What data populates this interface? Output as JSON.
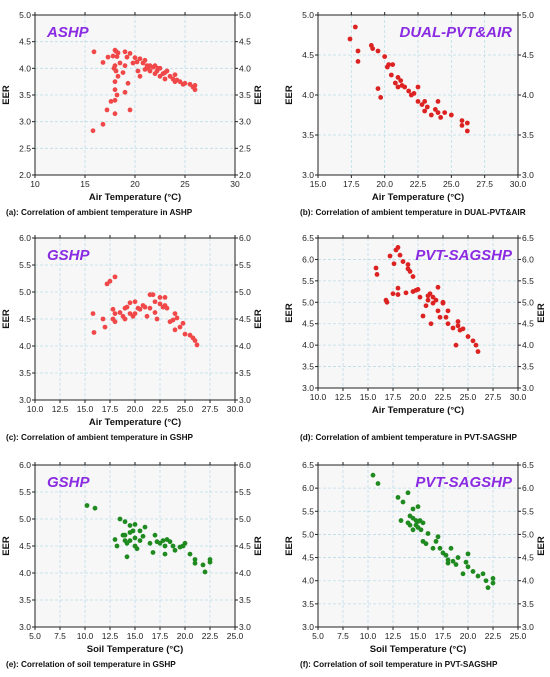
{
  "figure": {
    "background": "#ffffff",
    "plot_background": "#f7f7f7",
    "grid_color": "#bcdde8",
    "frame_color": "#222222"
  },
  "chart_data": [
    {
      "type": "scatter",
      "title": "ASHP",
      "title_color": "#8a2be2",
      "xlabel": "Air Temperature (°C)",
      "ylabel": "EER",
      "ylabel_right": "EER",
      "caption": "(a): Correlation of ambient temperature in ASHP",
      "xlim": [
        10,
        30
      ],
      "ylim": [
        2.0,
        5.0
      ],
      "xticks": [
        10,
        15,
        20,
        25,
        30
      ],
      "xtick_labels": [
        "10",
        "15",
        "20",
        "25",
        "30"
      ],
      "yticks": [
        2.0,
        2.5,
        3.0,
        3.5,
        4.0,
        4.5,
        5.0
      ],
      "ytick_labels": [
        "2.0",
        "2.5",
        "3.0",
        "3.5",
        "4.0",
        "4.5",
        "5.0"
      ],
      "grid": true,
      "marker_color": "#f04848",
      "series": [
        {
          "x": [
            15.8,
            15.9,
            16.8,
            16.8,
            17.2,
            17.3,
            17.6,
            17.8,
            17.9,
            18.0,
            18.0,
            18.0,
            18.0,
            18.0,
            18.0,
            18.1,
            18.1,
            18.2,
            18.2,
            18.3,
            18.3,
            18.5,
            18.8,
            19.0,
            19.0,
            19.0,
            19.2,
            19.3,
            19.5,
            19.5,
            19.8,
            20.0,
            20.2,
            20.3,
            20.5,
            20.5,
            20.8,
            21.0,
            21.0,
            21.2,
            21.3,
            21.5,
            21.5,
            21.8,
            22.0,
            22.0,
            22.2,
            22.3,
            22.5,
            22.5,
            22.8,
            23.0,
            23.0,
            23.2,
            23.5,
            23.8,
            24.0,
            24.0,
            24.2,
            24.5,
            24.8,
            25.0,
            25.5,
            25.8,
            26.0,
            26.0
          ],
          "y": [
            2.83,
            4.31,
            4.11,
            2.95,
            3.22,
            4.21,
            3.38,
            4.23,
            4.0,
            4.34,
            4.05,
            3.75,
            3.6,
            3.4,
            3.15,
            4.32,
            3.95,
            4.22,
            3.5,
            4.29,
            3.85,
            4.1,
            3.92,
            4.31,
            4.05,
            3.55,
            4.21,
            3.72,
            4.28,
            3.22,
            4.1,
            4.2,
            4.12,
            3.95,
            4.18,
            3.85,
            4.1,
            4.15,
            3.98,
            4.05,
            4.0,
            4.05,
            3.95,
            4.02,
            4.05,
            3.9,
            3.95,
            4.0,
            4.0,
            3.85,
            3.9,
            3.92,
            3.8,
            3.95,
            3.85,
            3.8,
            3.88,
            3.75,
            3.78,
            3.75,
            3.7,
            3.72,
            3.7,
            3.65,
            3.68,
            3.6
          ]
        }
      ]
    },
    {
      "type": "scatter",
      "title": "DUAL-PVT&AIR",
      "title_color": "#8a2be2",
      "xlabel": "Air Temperature (°C)",
      "ylabel": "EER",
      "ylabel_right": "",
      "caption": "(b): Correlation of ambient temperature in DUAL-PVT&AIR",
      "xlim": [
        15,
        30
      ],
      "ylim": [
        3.0,
        5.0
      ],
      "xticks": [
        15,
        17.5,
        20,
        22.5,
        25,
        27.5,
        30
      ],
      "xtick_labels": [
        "15.0",
        "17.5",
        "20.0",
        "22.5",
        "25.0",
        "27.5",
        "30.0"
      ],
      "yticks": [
        3.0,
        3.5,
        4.0,
        4.5,
        5.0
      ],
      "ytick_labels": [
        "3.0",
        "3.5",
        "4.0",
        "4.5",
        "5.0"
      ],
      "grid": true,
      "marker_color": "#dd2222",
      "series": [
        {
          "x": [
            17.4,
            17.8,
            18.0,
            18.0,
            19.0,
            19.1,
            19.5,
            19.5,
            19.7,
            20.0,
            20.2,
            20.3,
            20.5,
            20.6,
            20.8,
            21.0,
            21.0,
            21.2,
            21.3,
            21.5,
            21.8,
            22.0,
            22.2,
            22.5,
            22.5,
            22.8,
            23.0,
            23.0,
            23.2,
            23.5,
            23.8,
            24.0,
            24.0,
            24.2,
            24.5,
            25.0,
            25.8,
            25.8,
            26.2,
            26.2
          ],
          "y": [
            4.7,
            4.85,
            4.55,
            4.42,
            4.62,
            4.58,
            4.55,
            4.08,
            3.97,
            4.48,
            4.35,
            4.38,
            4.25,
            4.38,
            4.15,
            4.22,
            4.1,
            4.18,
            4.12,
            4.1,
            4.05,
            4.0,
            4.02,
            3.92,
            4.1,
            3.88,
            3.92,
            3.8,
            3.85,
            3.75,
            3.82,
            3.78,
            3.92,
            3.72,
            3.78,
            3.75,
            3.68,
            3.62,
            3.65,
            3.55
          ]
        }
      ]
    },
    {
      "type": "scatter",
      "title": "GSHP",
      "title_color": "#8a2be2",
      "xlabel": "Air Temperature (°C)",
      "ylabel": "EER",
      "ylabel_right": "EER",
      "caption": "(c): Correlation of ambient temperature in GSHP",
      "xlim": [
        10,
        30
      ],
      "ylim": [
        3.0,
        6.0
      ],
      "xticks": [
        10,
        12.5,
        15,
        17.5,
        20,
        22.5,
        25,
        27.5,
        30
      ],
      "xtick_labels": [
        "10.0",
        "12.5",
        "15.0",
        "17.5",
        "20.0",
        "22.5",
        "25.0",
        "27.5",
        "30.0"
      ],
      "yticks": [
        3.0,
        3.5,
        4.0,
        4.5,
        5.0,
        5.5,
        6.0
      ],
      "ytick_labels": [
        "3.0",
        "3.5",
        "4.0",
        "4.5",
        "5.0",
        "5.5",
        "6.0"
      ],
      "grid": true,
      "marker_color": "#f04848",
      "series": [
        {
          "x": [
            15.8,
            15.9,
            16.8,
            17.0,
            17.2,
            17.5,
            17.8,
            17.8,
            18.0,
            18.0,
            18.0,
            18.5,
            18.8,
            19.0,
            19.0,
            19.2,
            19.5,
            19.5,
            19.8,
            20.0,
            20.0,
            20.3,
            20.5,
            20.8,
            21.0,
            21.2,
            21.5,
            21.5,
            21.8,
            22.0,
            22.0,
            22.2,
            22.5,
            22.5,
            22.8,
            23.0,
            23.0,
            23.2,
            23.5,
            23.8,
            24.0,
            24.0,
            24.2,
            24.5,
            24.8,
            25.0,
            25.5,
            25.8,
            26.0,
            26.2
          ],
          "y": [
            4.6,
            4.25,
            4.5,
            4.35,
            5.15,
            5.2,
            4.68,
            4.5,
            5.28,
            4.6,
            4.45,
            4.62,
            4.55,
            4.7,
            4.5,
            4.72,
            4.8,
            4.6,
            4.55,
            4.82,
            4.6,
            4.7,
            4.68,
            4.75,
            4.72,
            4.55,
            4.95,
            4.7,
            4.95,
            4.62,
            4.82,
            4.5,
            4.9,
            4.78,
            4.72,
            4.9,
            4.75,
            4.7,
            4.45,
            4.48,
            4.6,
            4.3,
            4.52,
            4.35,
            4.42,
            4.22,
            4.2,
            4.15,
            4.1,
            4.02
          ]
        }
      ]
    },
    {
      "type": "scatter",
      "title": "PVT-SAGSHP",
      "title_color": "#8a2be2",
      "xlabel": "Air Temperature (°C)",
      "ylabel": "EER",
      "ylabel_right": "EER",
      "caption": "(d): Correlation of ambient temperature in PVT-SAGSHP",
      "xlim": [
        10,
        30
      ],
      "ylim": [
        3.0,
        6.5
      ],
      "xticks": [
        10,
        12.5,
        15,
        17.5,
        20,
        22.5,
        25,
        27.5,
        30
      ],
      "xtick_labels": [
        "10.0",
        "12.5",
        "15.0",
        "17.5",
        "20.0",
        "22.5",
        "25.0",
        "27.5",
        "30.0"
      ],
      "yticks": [
        3.0,
        3.5,
        4.0,
        4.5,
        5.0,
        5.5,
        6.0,
        6.5
      ],
      "ytick_labels": [
        "3.0",
        "3.5",
        "4.0",
        "4.5",
        "5.0",
        "5.5",
        "6.0",
        "6.5"
      ],
      "grid": true,
      "marker_color": "#dd2222",
      "series": [
        {
          "x": [
            15.8,
            15.9,
            16.8,
            16.9,
            17.2,
            17.5,
            17.6,
            17.8,
            18.0,
            18.0,
            18.0,
            18.2,
            18.5,
            18.8,
            19.0,
            19.0,
            19.2,
            19.5,
            19.5,
            19.8,
            20.0,
            20.2,
            20.5,
            20.8,
            21.0,
            21.0,
            21.2,
            21.3,
            21.5,
            21.5,
            21.8,
            22.0,
            22.0,
            22.2,
            22.5,
            22.5,
            22.8,
            23.0,
            23.0,
            23.5,
            23.8,
            24.0,
            24.0,
            24.2,
            24.5,
            25.0,
            25.5,
            25.8,
            26.0
          ],
          "y": [
            5.8,
            5.65,
            5.05,
            5.0,
            6.08,
            5.2,
            5.9,
            6.22,
            6.28,
            5.33,
            5.18,
            6.1,
            5.95,
            5.22,
            5.88,
            5.78,
            5.72,
            5.6,
            5.25,
            5.28,
            5.3,
            5.12,
            4.68,
            4.92,
            5.15,
            5.05,
            5.2,
            4.5,
            5.12,
            4.98,
            5.05,
            4.8,
            5.35,
            4.65,
            4.98,
            5.0,
            4.65,
            4.8,
            4.5,
            4.4,
            4.0,
            4.55,
            4.45,
            4.35,
            4.38,
            4.2,
            4.1,
            4.0,
            3.85
          ]
        }
      ]
    },
    {
      "type": "scatter",
      "title": "GSHP",
      "title_color": "#8a2be2",
      "xlabel": "Soil Temperature (°C)",
      "ylabel": "EER",
      "ylabel_right": "EER",
      "caption": "(e): Correlation of soil temperature in GSHP",
      "xlim": [
        5,
        25
      ],
      "ylim": [
        3.0,
        6.0
      ],
      "xticks": [
        5,
        7.5,
        10,
        12.5,
        15,
        17.5,
        20,
        22.5,
        25
      ],
      "xtick_labels": [
        "5.0",
        "7.5",
        "10.0",
        "12.5",
        "15.0",
        "17.5",
        "20.0",
        "22.5",
        "25.0"
      ],
      "yticks": [
        3.0,
        3.5,
        4.0,
        4.5,
        5.0,
        5.5,
        6.0
      ],
      "ytick_labels": [
        "3.0",
        "3.5",
        "4.0",
        "4.5",
        "5.0",
        "5.5",
        "6.0"
      ],
      "grid": true,
      "marker_color": "#1f8a1f",
      "series": [
        {
          "x": [
            10.2,
            11.0,
            13.0,
            13.2,
            13.5,
            13.8,
            14.0,
            14.0,
            14.0,
            14.2,
            14.2,
            14.5,
            14.5,
            14.5,
            14.8,
            15.0,
            15.0,
            15.0,
            15.2,
            15.5,
            15.5,
            15.8,
            16.0,
            16.5,
            16.8,
            17.0,
            17.2,
            17.5,
            17.8,
            18.0,
            18.0,
            18.2,
            18.5,
            18.8,
            19.0,
            19.5,
            19.8,
            20.0,
            20.5,
            21.0,
            21.0,
            21.8,
            22.0,
            22.5,
            22.5
          ],
          "y": [
            5.25,
            5.2,
            4.62,
            4.5,
            5.0,
            4.7,
            4.95,
            4.7,
            4.6,
            4.55,
            4.3,
            4.88,
            4.75,
            4.6,
            4.78,
            4.9,
            4.65,
            4.5,
            4.45,
            4.78,
            4.6,
            4.68,
            4.85,
            4.55,
            4.38,
            4.7,
            4.58,
            4.55,
            4.6,
            4.5,
            4.35,
            4.62,
            4.58,
            4.5,
            4.42,
            4.48,
            4.5,
            4.55,
            4.35,
            4.25,
            4.18,
            4.15,
            4.02,
            4.2,
            4.25
          ]
        }
      ]
    },
    {
      "type": "scatter",
      "title": "PVT-SAGSHP",
      "title_color": "#8a2be2",
      "xlabel": "Soil Temperature (°C)",
      "ylabel": "EER",
      "ylabel_right": "EER",
      "caption": "(f): Correlation of soil temperature in PVT-SAGSHP",
      "xlim": [
        5,
        25
      ],
      "ylim": [
        3.0,
        6.5
      ],
      "xticks": [
        5,
        7.5,
        10,
        12.5,
        15,
        17.5,
        20,
        22.5,
        25
      ],
      "xtick_labels": [
        "5.0",
        "7.5",
        "10.0",
        "12.5",
        "15.0",
        "17.5",
        "20.0",
        "22.5",
        "25.0"
      ],
      "yticks": [
        3.0,
        3.5,
        4.0,
        4.5,
        5.0,
        5.5,
        6.0,
        6.5
      ],
      "ytick_labels": [
        "3.0",
        "3.5",
        "4.0",
        "4.5",
        "5.0",
        "5.5",
        "6.0",
        "6.5"
      ],
      "grid": true,
      "marker_color": "#1f8a1f",
      "series": [
        {
          "x": [
            10.5,
            11.0,
            13.0,
            13.3,
            13.5,
            14.0,
            14.0,
            14.2,
            14.2,
            14.5,
            14.5,
            14.5,
            14.8,
            14.8,
            15.0,
            15.0,
            15.0,
            15.2,
            15.3,
            15.5,
            15.5,
            15.8,
            16.0,
            16.5,
            16.8,
            17.0,
            17.2,
            17.5,
            17.8,
            18.0,
            18.0,
            18.3,
            18.5,
            18.8,
            19.0,
            19.5,
            19.8,
            20.0,
            20.0,
            20.5,
            21.0,
            21.5,
            21.8,
            22.0,
            22.5,
            22.5
          ],
          "y": [
            6.28,
            6.1,
            5.8,
            5.3,
            5.7,
            5.25,
            5.9,
            5.4,
            5.2,
            5.55,
            5.35,
            5.1,
            5.2,
            5.3,
            5.6,
            5.28,
            5.15,
            5.3,
            5.1,
            5.25,
            4.85,
            4.8,
            5.02,
            4.7,
            4.85,
            4.95,
            4.7,
            4.6,
            4.55,
            4.45,
            4.38,
            4.7,
            4.42,
            4.35,
            4.5,
            4.15,
            4.4,
            4.58,
            4.3,
            4.2,
            4.1,
            4.15,
            4.0,
            3.85,
            4.05,
            3.95
          ]
        }
      ]
    }
  ]
}
